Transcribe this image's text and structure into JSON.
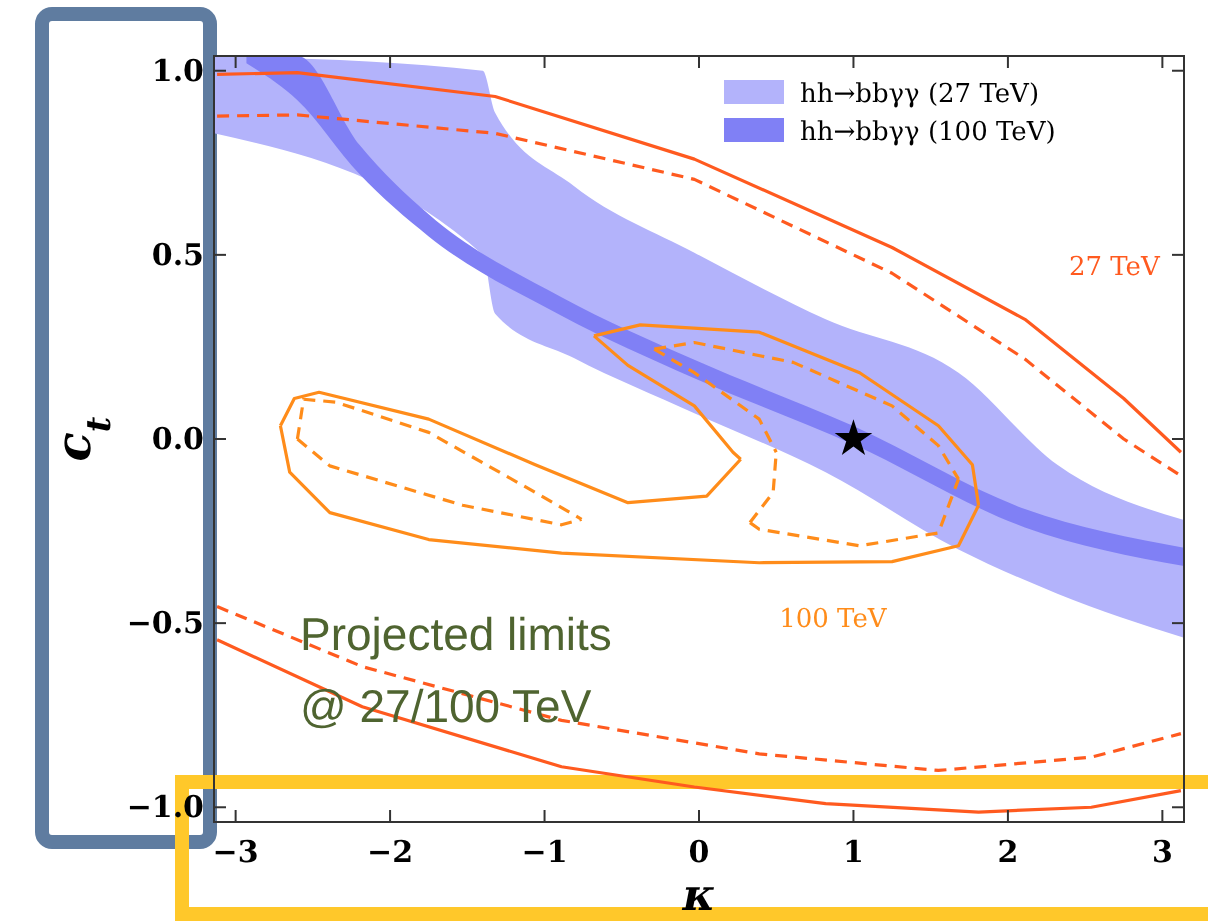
{
  "chart_data": {
    "type": "line",
    "xlabel": "κ",
    "ylabel": "c$_{t}$",
    "xlim": [
      -3.14,
      3.14
    ],
    "ylim": [
      -1.04,
      1.04
    ],
    "xticks": [
      {
        "value": -3,
        "label": "−3"
      },
      {
        "value": -2,
        "label": "−2"
      },
      {
        "value": -1,
        "label": "−1"
      },
      0,
      1,
      2,
      3
    ],
    "yticks": [
      {
        "value": -1,
        "label": "−1.0"
      },
      {
        "value": -0.5,
        "label": "−0.5"
      },
      {
        "value": 0,
        "label": "0.0"
      },
      {
        "value": 0.5,
        "label": "0.5"
      },
      {
        "value": 1,
        "label": "1.0"
      }
    ],
    "grid": false,
    "legend": "top right",
    "series": [
      {
        "type": "area",
        "name": "hh→bbγγ (27 TeV)",
        "color": "#b3b3fb",
        "values": [
          null,
          null,
          null,
          null,
          null,
          null,
          null,
          null,
          null
        ],
        "x": [
          -3.14,
          -1.4,
          -1.32,
          -0.81,
          -0.03,
          0.82,
          1.68,
          2.32,
          3.14
        ],
        "lower": [
          0.83,
          0.5,
          0.34,
          0.22,
          0.07,
          -0.09,
          -0.3,
          -0.42,
          -0.54
        ],
        "upper": [
          1.04,
          1.0,
          0.886,
          0.687,
          0.506,
          0.325,
          0.18,
          -0.07,
          -0.22
        ]
      },
      {
        "type": "area",
        "name": "hh→bbγγ (100 TeV)",
        "color": "#8080f5",
        "values": [
          null,
          null,
          null,
          null,
          null,
          null,
          null,
          null,
          null
        ],
        "x": [
          -2.93,
          -2.6,
          -2.2,
          -1.75,
          -0.89,
          -0.03,
          1.0,
          2.11,
          3.14
        ],
        "lower": [
          1.02,
          0.92,
          0.72,
          0.55,
          0.335,
          0.165,
          -0.015,
          -0.24,
          -0.345
        ],
        "upper": [
          1.04,
          1.04,
          0.8,
          0.61,
          0.385,
          0.215,
          0.035,
          -0.19,
          -0.295
        ]
      },
      {
        "name": "27 TeV",
        "color": "#ff5a1f",
        "line_style": "solid",
        "x": [
          -3.12,
          -2.6,
          -1.32,
          -0.03,
          1.25,
          2.11,
          2.75,
          3.12,
          null,
          -3.12,
          -2.18,
          -0.89,
          -0.03,
          0.82,
          1.81,
          2.54,
          3.12
        ],
        "values": [
          0.99,
          0.995,
          0.93,
          0.76,
          0.52,
          0.325,
          0.11,
          -0.036,
          null,
          -0.545,
          -0.727,
          -0.89,
          -0.945,
          -0.99,
          -1.013,
          -1.0,
          -0.955
        ]
      },
      {
        "color": "#ff5a1f",
        "line_style": "dashed",
        "x": [
          -3.12,
          -2.6,
          -1.32,
          -0.03,
          1.25,
          2.11,
          2.75,
          3.12,
          null,
          -3.12,
          -2.18,
          -0.89,
          0.39,
          1.55,
          2.54,
          3.12
        ],
        "values": [
          0.877,
          0.88,
          0.83,
          0.705,
          0.45,
          0.217,
          0.0,
          -0.1,
          null,
          -0.455,
          -0.618,
          -0.764,
          -0.855,
          -0.9,
          -0.864,
          -0.8
        ]
      },
      {
        "name": "100 TeV",
        "color": "#ff8c1a",
        "line_style": "solid",
        "x": [
          -0.68,
          -0.38,
          0.39,
          1.04,
          1.55,
          1.77,
          1.81,
          null,
          -2.71,
          -2.65,
          -2.39,
          -1.75,
          -0.89,
          0.39,
          1.25,
          1.68,
          1.81,
          null,
          -2.71,
          -2.62,
          -2.46,
          -1.75,
          -1.06,
          -0.46,
          0.05,
          0.27,
          null,
          -0.68,
          -0.46,
          -0.03,
          0.22,
          0.27
        ],
        "values": [
          0.28,
          0.31,
          0.29,
          0.18,
          0.036,
          -0.07,
          -0.18,
          null,
          0.036,
          -0.09,
          -0.2,
          -0.273,
          -0.31,
          -0.336,
          -0.333,
          -0.29,
          -0.18,
          null,
          0.036,
          0.11,
          0.127,
          0.054,
          -0.07,
          -0.173,
          -0.155,
          -0.055,
          null,
          0.28,
          0.2,
          0.09,
          -0.036,
          -0.055
        ]
      },
      {
        "color": "#ff8c1a",
        "line_style": "dashed",
        "x": [
          -2.6,
          -2.56,
          -2.35,
          -1.75,
          -1.06,
          -0.76,
          null,
          -2.6,
          -2.39,
          -1.53,
          -0.89,
          -0.76,
          null,
          -0.29,
          -0.03,
          0.61,
          1.25,
          1.55,
          1.68,
          null,
          0.33,
          0.39,
          1.04,
          1.55,
          1.68,
          null,
          0.33,
          0.48,
          0.5,
          null,
          -0.29,
          -0.03,
          0.39,
          0.5
        ],
        "values": [
          0.0,
          0.108,
          0.1,
          0.018,
          -0.145,
          -0.218,
          null,
          0.0,
          -0.073,
          -0.18,
          -0.233,
          -0.218,
          null,
          0.244,
          0.262,
          0.208,
          0.09,
          -0.018,
          -0.109,
          null,
          -0.227,
          -0.245,
          -0.29,
          -0.255,
          -0.109,
          null,
          -0.227,
          -0.145,
          -0.036,
          null,
          0.244,
          0.18,
          0.054,
          -0.036
        ]
      },
      {
        "type": "scatter",
        "color": "#000000",
        "marker": "star",
        "x": [
          1
        ],
        "values": [
          0
        ]
      }
    ],
    "annotations": [
      "Projected limits",
      "@ 27/100 TeV"
    ]
  }
}
